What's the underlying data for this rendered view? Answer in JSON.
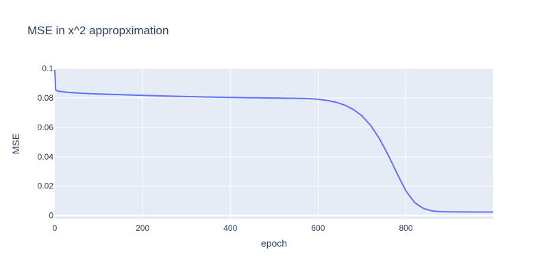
{
  "chart_data": {
    "type": "line",
    "title": "MSE in x^2 appropximation",
    "xlabel": "epoch",
    "ylabel": "MSE",
    "xlim": [
      0,
      999
    ],
    "ylim": [
      -0.0025,
      0.1
    ],
    "x_ticks": [
      0,
      200,
      400,
      600,
      800
    ],
    "x_tick_labels": [
      "0",
      "200",
      "400",
      "600",
      "800"
    ],
    "y_ticks": [
      0,
      0.02,
      0.04,
      0.06,
      0.08,
      0.1
    ],
    "y_tick_labels": [
      "0",
      "0.02",
      "0.04",
      "0.06",
      "0.08",
      "0.1"
    ],
    "grid": true,
    "colors": {
      "plot_bg": "#e5ecf6",
      "grid": "#ffffff",
      "line": "#636efa",
      "text": "#2a3f5f"
    },
    "series": [
      {
        "x": [
          0,
          2,
          5,
          10,
          20,
          40,
          80,
          150,
          250,
          350,
          450,
          550,
          580,
          600,
          620,
          640,
          660,
          680,
          700,
          720,
          740,
          760,
          780,
          800,
          820,
          840,
          860,
          880,
          900,
          950,
          999
        ],
        "y": [
          0.099,
          0.0855,
          0.0848,
          0.0845,
          0.0841,
          0.0835,
          0.0829,
          0.0822,
          0.0813,
          0.0806,
          0.0801,
          0.0797,
          0.0795,
          0.0791,
          0.0783,
          0.0771,
          0.0752,
          0.0722,
          0.0678,
          0.0612,
          0.0522,
          0.041,
          0.0285,
          0.0168,
          0.0088,
          0.0048,
          0.0031,
          0.0026,
          0.0025,
          0.0024,
          0.0024
        ]
      }
    ]
  }
}
